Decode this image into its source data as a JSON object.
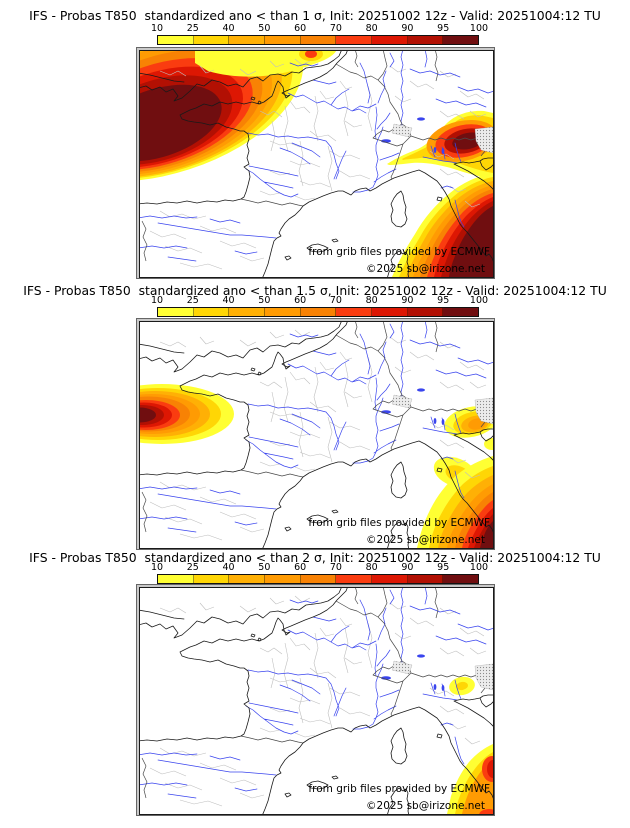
{
  "page": {
    "background": "#ffffff"
  },
  "colorbar": {
    "tick_labels": [
      "10",
      "25",
      "40",
      "50",
      "60",
      "70",
      "80",
      "90",
      "95",
      "100"
    ],
    "band_colors": [
      "#ffff33",
      "#ffd605",
      "#ffb005",
      "#ff9b03",
      "#f88204",
      "#fa3c10",
      "#dd1703",
      "#b21003",
      "#700e10"
    ]
  },
  "panels": [
    {
      "title": "IFS - Probas T850  standardized ano < than 1 σ, Init: 20251002 12z - Valid: 20251004:12 TU"
    },
    {
      "title": "IFS - Probas T850  standardized ano < than 1.5 σ, Init: 20251002 12z - Valid: 20251004:12 TU"
    },
    {
      "title": "IFS - Probas T850  standardized ano < than 2 σ, Init: 20251002 12z - Valid: 20251004:12 TU"
    }
  ],
  "attribution": {
    "line1": "from grib files provided by ECMWF",
    "line2": "©2025 sb@irizone.net"
  },
  "map_colors": {
    "coastline": "#1a1a1a",
    "rivers": "#3a45ee",
    "admin_boundaries": "#bfbfbf",
    "country_borders": "#4a4a4a"
  }
}
